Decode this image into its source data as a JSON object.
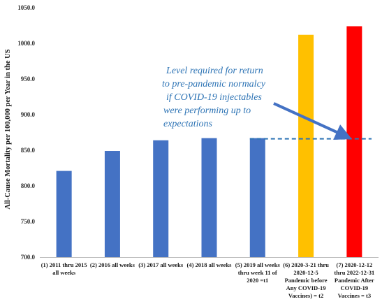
{
  "chart_data": {
    "type": "bar",
    "title": "",
    "xlabel": "",
    "ylabel": "All-Cause Mortality per 100,000 per Year in the US",
    "ylim": [
      700,
      1050
    ],
    "yticks": [
      "700.0",
      "750.0",
      "800.0",
      "850.0",
      "900.0",
      "950.0",
      "1000.0",
      "1050.0"
    ],
    "ytick_values": [
      700,
      750,
      800,
      850,
      900,
      950,
      1000,
      1050
    ],
    "grid": false,
    "categories": [
      [
        "(1) 2011 thru 2015",
        "all weeks"
      ],
      [
        "(2) 2016 all weeks"
      ],
      [
        "(3) 2017 all weeks"
      ],
      [
        "(4) 2018 all weeks"
      ],
      [
        "(5) 2019 all weeks",
        "thru week 11 of",
        "2020 =t1"
      ],
      [
        "(6) 2020-3-21 thru",
        "2020-12-5",
        "Pandemic before",
        "Any COVID-19",
        "Vaccines) = t2"
      ],
      [
        "(7) 2020-12-12",
        "thru 2022-12-31",
        "Pandemic After",
        "COVID-19",
        "Vaccines = t3"
      ]
    ],
    "values": [
      821,
      849,
      864,
      867,
      867,
      1012,
      1024
    ],
    "colors": [
      "#4472c4",
      "#4472c4",
      "#4472c4",
      "#4472c4",
      "#4472c4",
      "#ffc000",
      "#ff0000"
    ],
    "reference_line": {
      "value": 866,
      "color": "#2e74b5",
      "style": "dashed"
    },
    "annotation": {
      "lines": [
        "Level required for return",
        "to pre-pandemic normalcy",
        "if  COVID-19 injectables",
        "were performing up to",
        "expectations"
      ],
      "color": "#2e74b5"
    }
  }
}
